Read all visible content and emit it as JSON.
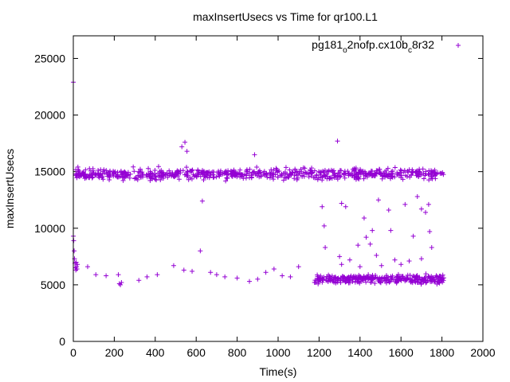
{
  "chart_data": {
    "type": "scatter",
    "title": "maxInsertUsecs vs Time for qr100.L1",
    "xlabel": "Time(s)",
    "ylabel": "maxInsertUsecs",
    "xlim": [
      0,
      2000
    ],
    "ylim": [
      0,
      27000
    ],
    "x_ticks": [
      0,
      200,
      400,
      600,
      800,
      1000,
      1200,
      1400,
      1600,
      1800,
      2000
    ],
    "y_ticks": [
      0,
      5000,
      10000,
      15000,
      20000,
      25000
    ],
    "legend_position": "top-right",
    "point_color": "#9400d3",
    "marker": "plus",
    "series": [
      {
        "name": "pg181_o2nofp.cx10b_c8r32",
        "name_parts": [
          "pg181",
          "o",
          "2nofp.cx10b",
          "c",
          "8r32"
        ],
        "bands": [
          {
            "x_start": 5,
            "x_end": 1810,
            "y_center": 14800,
            "y_spread": 500,
            "count": 700
          },
          {
            "x_start": 1175,
            "x_end": 1810,
            "y_center": 5500,
            "y_spread": 400,
            "count": 320
          }
        ],
        "points": [
          [
            0,
            22900
          ],
          [
            0,
            9300
          ],
          [
            2,
            8900
          ],
          [
            4,
            8000
          ],
          [
            6,
            7300
          ],
          [
            8,
            6900
          ],
          [
            10,
            6500
          ],
          [
            12,
            6300
          ],
          [
            14,
            7000
          ],
          [
            16,
            6600
          ],
          [
            18,
            6400
          ],
          [
            20,
            6800
          ],
          [
            70,
            6600
          ],
          [
            110,
            5900
          ],
          [
            160,
            5800
          ],
          [
            220,
            5900
          ],
          [
            225,
            5100
          ],
          [
            230,
            5000
          ],
          [
            235,
            5200
          ],
          [
            320,
            5400
          ],
          [
            360,
            5700
          ],
          [
            410,
            5900
          ],
          [
            490,
            6700
          ],
          [
            540,
            6300
          ],
          [
            580,
            6200
          ],
          [
            620,
            8000
          ],
          [
            670,
            6100
          ],
          [
            700,
            5900
          ],
          [
            740,
            5700
          ],
          [
            800,
            5600
          ],
          [
            860,
            5300
          ],
          [
            900,
            5500
          ],
          [
            940,
            6100
          ],
          [
            980,
            6400
          ],
          [
            1020,
            5800
          ],
          [
            1060,
            5700
          ],
          [
            1100,
            6600
          ],
          [
            530,
            17200
          ],
          [
            545,
            17600
          ],
          [
            555,
            16800
          ],
          [
            630,
            12400
          ],
          [
            885,
            16500
          ],
          [
            1290,
            17700
          ],
          [
            1215,
            11900
          ],
          [
            1225,
            10200
          ],
          [
            1310,
            12200
          ],
          [
            1330,
            11900
          ],
          [
            1420,
            10900
          ],
          [
            1450,
            8600
          ],
          [
            1490,
            12500
          ],
          [
            1540,
            11600
          ],
          [
            1620,
            12100
          ],
          [
            1680,
            12800
          ],
          [
            1700,
            11700
          ],
          [
            1720,
            11400
          ],
          [
            1735,
            12100
          ],
          [
            1230,
            8300
          ],
          [
            1300,
            7500
          ],
          [
            1310,
            6800
          ],
          [
            1350,
            7200
          ],
          [
            1390,
            8500
          ],
          [
            1400,
            6600
          ],
          [
            1430,
            9200
          ],
          [
            1460,
            9800
          ],
          [
            1480,
            7600
          ],
          [
            1505,
            6700
          ],
          [
            1550,
            9800
          ],
          [
            1570,
            7200
          ],
          [
            1600,
            6800
          ],
          [
            1640,
            7100
          ],
          [
            1660,
            9300
          ],
          [
            1700,
            7300
          ],
          [
            1740,
            9700
          ],
          [
            1750,
            8300
          ]
        ]
      }
    ]
  }
}
